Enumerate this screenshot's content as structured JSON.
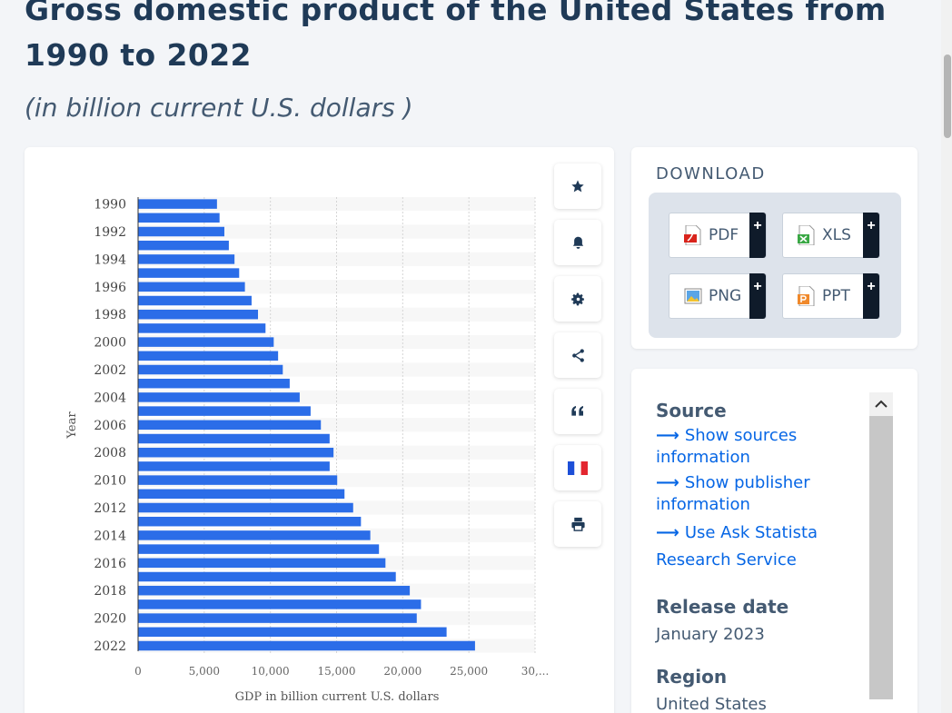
{
  "header": {
    "title": "Gross domestic product of the United States from 1990 to 2022",
    "subtitle": "(in billion current U.S. dollars )"
  },
  "chart_data": {
    "type": "bar",
    "orientation": "horizontal",
    "categories": [
      "1990",
      "1991",
      "1992",
      "1993",
      "1994",
      "1995",
      "1996",
      "1997",
      "1998",
      "1999",
      "2000",
      "2001",
      "2002",
      "2003",
      "2004",
      "2005",
      "2006",
      "2007",
      "2008",
      "2009",
      "2010",
      "2011",
      "2012",
      "2013",
      "2014",
      "2015",
      "2016",
      "2017",
      "2018",
      "2019",
      "2020",
      "2021",
      "2022"
    ],
    "y_tick_labels": [
      "1990",
      "1992",
      "1994",
      "1996",
      "1998",
      "2000",
      "2002",
      "2004",
      "2006",
      "2008",
      "2010",
      "2012",
      "2014",
      "2016",
      "2018",
      "2020",
      "2022"
    ],
    "values": [
      5963,
      6158,
      6520,
      6859,
      7287,
      7640,
      8073,
      8578,
      9063,
      9631,
      10251,
      10582,
      10936,
      11458,
      12214,
      13039,
      13815,
      14475,
      14770,
      14478,
      15049,
      15600,
      16254,
      16843,
      17551,
      18206,
      18695,
      19477,
      20533,
      21381,
      21060,
      23315,
      25464
    ],
    "xlabel": "GDP in billion current U.S. dollars",
    "ylabel": "Year",
    "x_tick_labels": [
      "0",
      "5,000",
      "10,000",
      "15,000",
      "20,000",
      "25,000",
      "30,..."
    ],
    "xlim": [
      0,
      30000
    ],
    "bar_color": "#2b6de8",
    "grid": true
  },
  "toolbar": {
    "items": [
      {
        "name": "favorite",
        "icon": "star-icon"
      },
      {
        "name": "notification",
        "icon": "bell-icon"
      },
      {
        "name": "settings",
        "icon": "gear-icon"
      },
      {
        "name": "share",
        "icon": "share-icon"
      },
      {
        "name": "cite",
        "icon": "quote-icon"
      },
      {
        "name": "language",
        "icon": "french-flag-icon"
      },
      {
        "name": "print",
        "icon": "printer-icon"
      }
    ]
  },
  "download": {
    "title": "DOWNLOAD",
    "pdf_label": "PDF",
    "xls_label": "XLS",
    "png_label": "PNG",
    "ppt_label": "PPT",
    "plus": "+"
  },
  "info": {
    "source_heading": "Source",
    "show_sources": "Show sources information",
    "show_publisher": "Show publisher information",
    "ask_statista": "Use Ask Statista Research Service",
    "release_heading": "Release date",
    "release_value": "January 2023",
    "region_heading": "Region",
    "region_value": "United States"
  },
  "colors": {
    "accent": "#0666e5",
    "title": "#1f3a57",
    "bar": "#2b6de8"
  }
}
